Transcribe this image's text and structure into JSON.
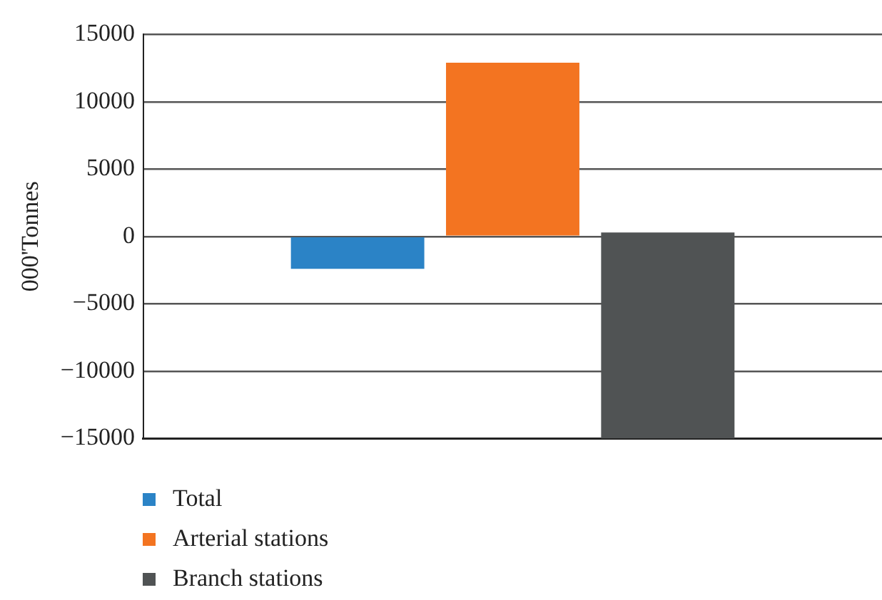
{
  "chart_data": {
    "type": "bar",
    "ylabel": "000'Tonnes",
    "categories": [
      null
    ],
    "series": [
      {
        "name": "Total",
        "color": "#2b83c6",
        "values": [
          -2400
        ]
      },
      {
        "name": "Arterial stations",
        "color": "#f37421",
        "values": [
          12900
        ]
      },
      {
        "name": "Branch stations",
        "color": "#505354",
        "values": [
          -15300
        ],
        "base": [
          300
        ]
      }
    ],
    "ylim": [
      -15000,
      15000
    ],
    "yticks": [
      -15000,
      -10000,
      -5000,
      0,
      5000,
      10000,
      15000
    ],
    "grid": "y",
    "legend": "bottom left"
  }
}
